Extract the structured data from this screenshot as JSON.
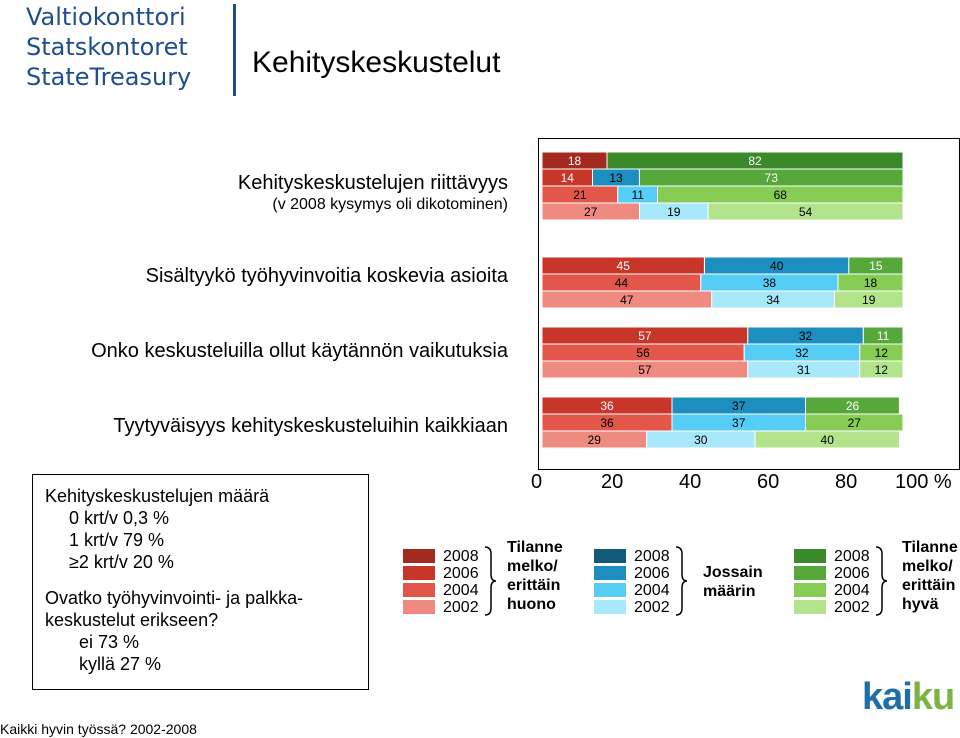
{
  "logo": {
    "lines": [
      "Valtiokonttori",
      "Statskontoret",
      "StateTreasury"
    ]
  },
  "page_title": "Kehityskeskustelut",
  "questions": [
    {
      "title": "Kehityskeskustelujen riittävyys",
      "subtitle": "(v 2008 kysymys oli dikotominen)"
    },
    {
      "title": "Sisältyykö työhyvinvoitia koskevia asioita",
      "subtitle": ""
    },
    {
      "title": "Onko keskusteluilla ollut käytännön vaikutuksia",
      "subtitle": ""
    },
    {
      "title": "Tyytyväisyys kehityskeskusteluihin kaikkiaan",
      "subtitle": ""
    }
  ],
  "info_box": {
    "heading": "Kehityskeskustelujen määrä",
    "items": [
      "0 krt/v 0,3 %",
      "1 krt/v 79 %",
      "≥2 krt/v 20 %"
    ],
    "heading2a": "Ovatko työhyvinvointi- ja palkka-",
    "heading2b": "keskustelut erikseen?",
    "items2": [
      "ei 73 %",
      "kyllä 27 %"
    ]
  },
  "footer": "Kaikki hyvin työssä? 2002-2008",
  "legend": {
    "years": [
      "2008",
      "2006",
      "2004",
      "2002"
    ],
    "groups": [
      {
        "name": [
          "Tilanne",
          "melko/",
          "erittäin",
          "huono"
        ],
        "colors": [
          "#a32a1e",
          "#c8362a",
          "#e2574a",
          "#ef8a80"
        ]
      },
      {
        "name": [
          "Jossain",
          "määrin"
        ],
        "colors": [
          "#125a7a",
          "#1c8fc0",
          "#55cdf5",
          "#a8e8fb"
        ]
      },
      {
        "name": [
          "Tilanne",
          "melko/",
          "erittäin",
          "hyvä"
        ],
        "colors": [
          "#3a8a2b",
          "#57a83b",
          "#86cc55",
          "#b3e38a"
        ]
      }
    ]
  },
  "brand": {
    "text_a": "kai",
    "text_b": "ku"
  },
  "chart_data": {
    "type": "bar",
    "orientation": "horizontal-stacked-100",
    "xlim": [
      0,
      100
    ],
    "x_ticks": [
      "0",
      "20",
      "40",
      "60",
      "80",
      "100 %"
    ],
    "series_names": [
      "Tilanne melko/erittäin huono",
      "Jossain määrin",
      "Tilanne melko/erittäin hyvä"
    ],
    "groups": [
      {
        "question": "Kehityskeskustelujen riittävyys",
        "rows": [
          {
            "year": "2008",
            "values": [
              18,
              0,
              82
            ]
          },
          {
            "year": "2006",
            "values": [
              14,
              13,
              73
            ]
          },
          {
            "year": "2004",
            "values": [
              21,
              11,
              68
            ]
          },
          {
            "year": "2002",
            "values": [
              27,
              19,
              54
            ]
          }
        ]
      },
      {
        "question": "Sisältyykö työhyvinvoitia koskevia asioita",
        "rows": [
          {
            "year": "2006",
            "values": [
              45,
              40,
              15
            ]
          },
          {
            "year": "2004",
            "values": [
              44,
              38,
              18
            ]
          },
          {
            "year": "2002",
            "values": [
              47,
              34,
              19
            ]
          }
        ]
      },
      {
        "question": "Onko keskusteluilla ollut käytännön vaikutuksia",
        "rows": [
          {
            "year": "2006",
            "values": [
              57,
              32,
              11
            ]
          },
          {
            "year": "2004",
            "values": [
              56,
              32,
              12
            ]
          },
          {
            "year": "2002",
            "values": [
              57,
              31,
              12
            ]
          }
        ]
      },
      {
        "question": "Tyytyväisyys kehityskeskusteluihin kaikkiaan",
        "rows": [
          {
            "year": "2006",
            "values": [
              36,
              37,
              26
            ]
          },
          {
            "year": "2004",
            "values": [
              36,
              37,
              27
            ]
          },
          {
            "year": "2002",
            "values": [
              29,
              30,
              40
            ]
          }
        ]
      }
    ]
  }
}
